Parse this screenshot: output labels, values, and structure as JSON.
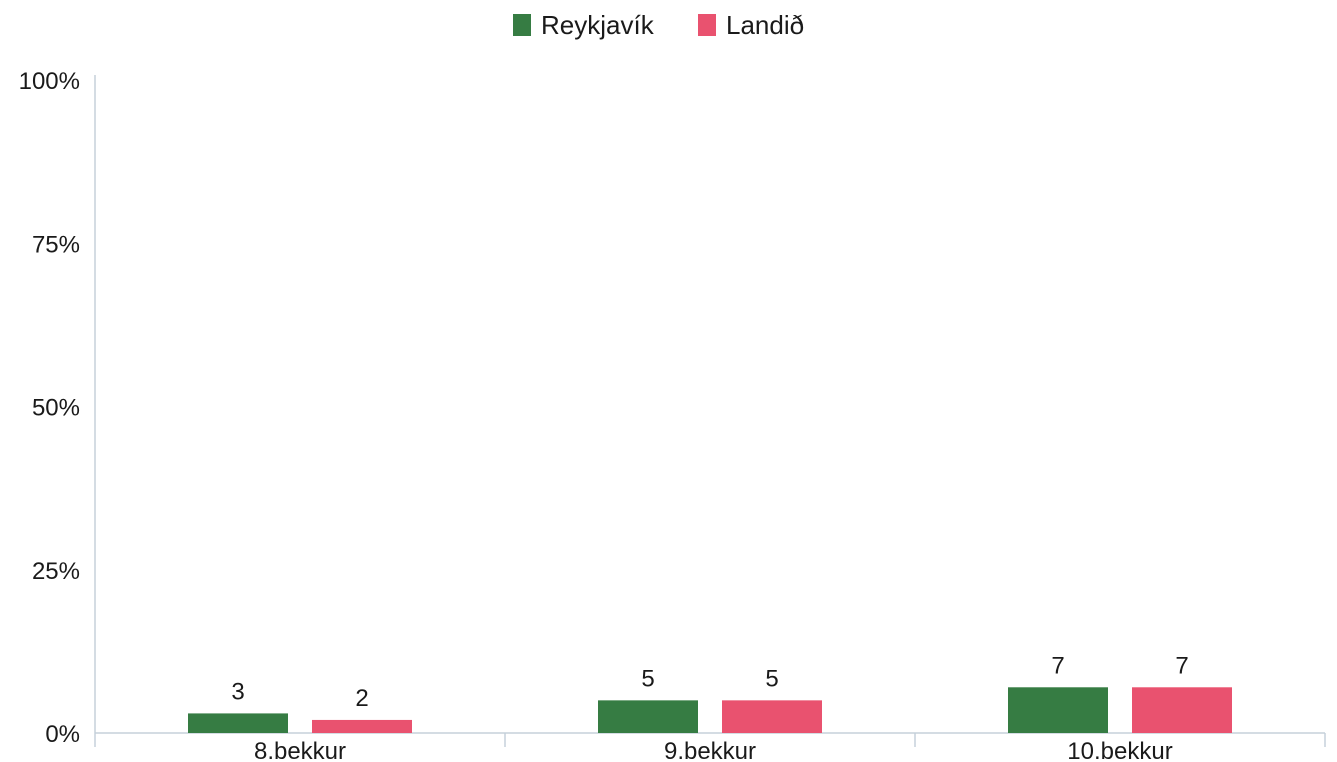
{
  "chart_data": {
    "type": "bar",
    "categories": [
      "8.bekkur",
      "9.bekkur",
      "10.bekkur"
    ],
    "series": [
      {
        "name": "Reykjavík",
        "values": [
          3,
          5,
          7
        ],
        "labels": [
          "3",
          "5",
          "7"
        ],
        "color": "#367c43"
      },
      {
        "name": "Landið",
        "values": [
          2,
          5,
          7
        ],
        "labels": [
          "2",
          "5",
          "7"
        ],
        "color": "#e9526f"
      }
    ],
    "ylim": [
      0,
      100
    ],
    "yticks": [
      0,
      25,
      50,
      75,
      100
    ],
    "ytick_labels": [
      "0%",
      "25%",
      "50%",
      "75%",
      "100%"
    ],
    "legend_position": "top-center",
    "grid": false,
    "axis_color": "#c5d0da"
  }
}
